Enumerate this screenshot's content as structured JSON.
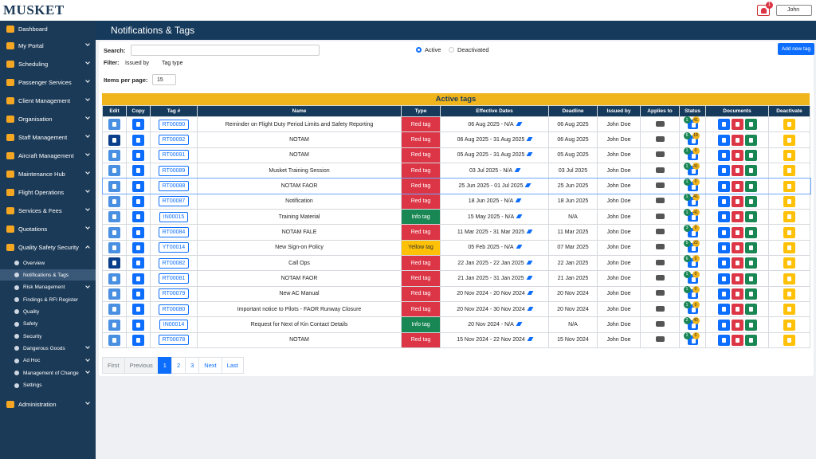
{
  "header": {
    "logo": "MUSKET",
    "notification_count": 1,
    "user": "John"
  },
  "sidebar": {
    "items": [
      "Dashboard",
      "My Portal",
      "Scheduling",
      "Passenger Services",
      "Client Management",
      "Organisation",
      "Staff Management",
      "Aircraft Management",
      "Maintenance Hub",
      "Flight Operations",
      "Services & Fees",
      "Quotations",
      "Quality Safety Security"
    ],
    "sub_items": [
      "Overview",
      "Notifications & Tags",
      "Risk Management",
      "Findings & RFI Register",
      "Quality",
      "Safety",
      "Security",
      "Dangerous Goods",
      "Ad Hoc",
      "Management of Change",
      "Settings"
    ],
    "last_item": "Administration"
  },
  "page": {
    "title": "Notifications & Tags",
    "search_label": "Search:",
    "status_options": [
      "Active",
      "Deactivated"
    ],
    "add_button": "Add new tag",
    "filter_label": "Filter:",
    "filters": [
      "Issued by",
      "Tag type"
    ],
    "items_per_page_label": "Items per page:",
    "items_per_page": 15
  },
  "table": {
    "title": "Active tags",
    "columns": [
      "Edit",
      "Copy",
      "Tag #",
      "Name",
      "Type",
      "Effective Dates",
      "Deadline",
      "Issued by",
      "Applies to",
      "Status",
      "Documents",
      "Deactivate"
    ],
    "rows": [
      {
        "tag": "RT00090",
        "name": "Reminder on Flight Duty Period Limits and Safety Reporting",
        "type": "Red tag",
        "color": "#dc3545",
        "dates": "06 Aug 2025 - N/A",
        "deadline": "06 Aug 2025",
        "issued_by": "John Doe",
        "status": [
          1,
          41
        ]
      },
      {
        "tag": "RT00092",
        "name": "NOTAM",
        "type": "Red tag",
        "color": "#dc3545",
        "dates": "06 Aug 2025 - 31 Aug 2025",
        "deadline": "06 Aug 2025",
        "issued_by": "John Doe",
        "status": [
          6,
          18
        ]
      },
      {
        "tag": "RT00091",
        "name": "NOTAM",
        "type": "Red tag",
        "color": "#dc3545",
        "dates": "05 Aug 2025 - 31 Aug 2025",
        "deadline": "05 Aug 2025",
        "issued_by": "John Doe",
        "status": [
          1,
          0
        ]
      },
      {
        "tag": "RT00089",
        "name": "Musket Training Session",
        "type": "Red tag",
        "color": "#dc3545",
        "dates": "03 Jul 2025 - N/A",
        "deadline": "03 Jul 2025",
        "issued_by": "John Doe",
        "status": [
          1,
          41
        ]
      },
      {
        "tag": "RT00088",
        "name": "NOTAM FAOR",
        "type": "Red tag",
        "color": "#dc3545",
        "dates": "25 Jun 2025 - 01 Jul 2025",
        "deadline": "25 Jun 2025",
        "issued_by": "John Doe",
        "status": [
          1,
          0
        ]
      },
      {
        "tag": "RT00087",
        "name": "Notification",
        "type": "Red tag",
        "color": "#dc3545",
        "dates": "18 Jun 2025 - N/A",
        "deadline": "18 Jun 2025",
        "issued_by": "John Doe",
        "status": [
          1,
          41
        ]
      },
      {
        "tag": "IN00015",
        "name": "Training Material",
        "type": "Info tag",
        "color": "#198754",
        "dates": "15 May 2025 - N/A",
        "deadline": "N/A",
        "issued_by": "John Doe",
        "status": [
          1,
          41
        ]
      },
      {
        "tag": "RT00084",
        "name": "NOTAM FALE",
        "type": "Red tag",
        "color": "#dc3545",
        "dates": "11 Mar 2025 - 31 Mar 2025",
        "deadline": "11 Mar 2025",
        "issued_by": "John Doe",
        "status": [
          3,
          0
        ]
      },
      {
        "tag": "YT00014",
        "name": "New Sign-on Policy",
        "type": "Yellow tag",
        "color": "#ffc107",
        "dates": "05 Feb 2025 - N/A",
        "deadline": "07 Mar 2025",
        "issued_by": "John Doe",
        "status": [
          5,
          22
        ]
      },
      {
        "tag": "RT00082",
        "name": "Call Ops",
        "type": "Red tag",
        "color": "#dc3545",
        "dates": "22 Jan 2025 - 22 Jan 2025",
        "deadline": "22 Jan 2025",
        "issued_by": "John Doe",
        "status": [
          6,
          0
        ]
      },
      {
        "tag": "RT00081",
        "name": "NOTAM FAOR",
        "type": "Red tag",
        "color": "#dc3545",
        "dates": "21 Jan 2025 - 31 Jan 2025",
        "deadline": "21 Jan 2025",
        "issued_by": "John Doe",
        "status": [
          1,
          0
        ]
      },
      {
        "tag": "RT00079",
        "name": "New AC Manual",
        "type": "Red tag",
        "color": "#dc3545",
        "dates": "20 Nov 2024 - 20 Nov 2024",
        "deadline": "20 Nov 2024",
        "issued_by": "John Doe",
        "status": [
          1,
          0
        ]
      },
      {
        "tag": "RT00080",
        "name": "Important notice to Pilots - FAOR Runway Closure",
        "type": "Red tag",
        "color": "#dc3545",
        "dates": "20 Nov 2024 - 30 Nov 2024",
        "deadline": "20 Nov 2024",
        "issued_by": "John Doe",
        "status": [
          1,
          0
        ]
      },
      {
        "tag": "IN00014",
        "name": "Request for Next of Kin Contact Details",
        "type": "Info tag",
        "color": "#198754",
        "dates": "20 Nov 2024 - N/A",
        "deadline": "N/A",
        "issued_by": "John Doe",
        "status": [
          2,
          40
        ]
      },
      {
        "tag": "RT00078",
        "name": "NOTAM",
        "type": "Red tag",
        "color": "#dc3545",
        "dates": "15 Nov 2024 - 22 Nov 2024",
        "deadline": "15 Nov 2024",
        "issued_by": "John Doe",
        "status": [
          1,
          0
        ]
      }
    ]
  },
  "pagination": [
    "First",
    "Previous",
    "1",
    "2",
    "3",
    "Next",
    "Last"
  ]
}
